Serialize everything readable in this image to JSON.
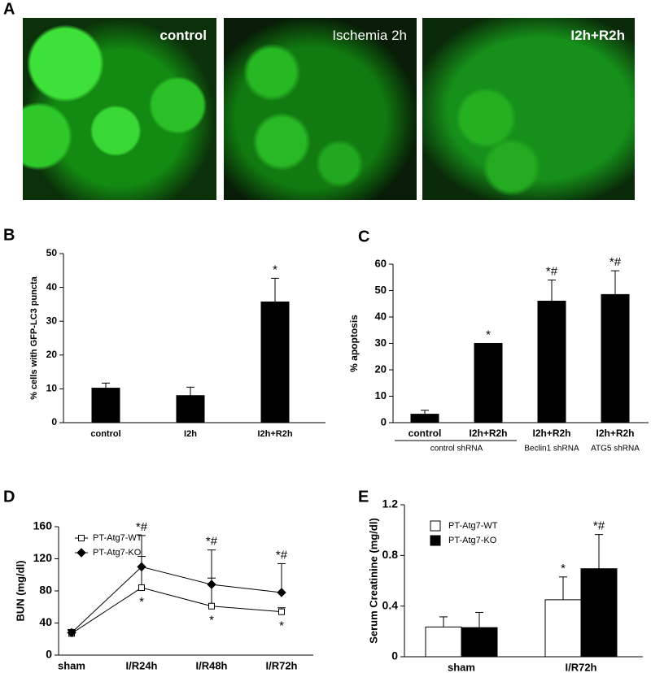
{
  "images": {
    "label": "A",
    "captions": [
      "control",
      "Ischemia 2h",
      "I2h+R2h"
    ]
  },
  "chart_data": [
    {
      "type": "bar",
      "label": "B",
      "y_label": "% cells with GFP-LC3 puncta",
      "categories": [
        "control",
        "I2h",
        "I2h+R2h"
      ],
      "series": [
        {
          "color": "#000000",
          "values": [
            10.2,
            8,
            35.7
          ],
          "errors": [
            1.5,
            2.5,
            7
          ],
          "value_notes": [
            null,
            null,
            "*"
          ]
        }
      ],
      "ylim": [
        0,
        50
      ],
      "yticks": [
        0,
        10,
        20,
        30,
        40,
        50
      ]
    },
    {
      "type": "bar",
      "label": "C",
      "y_label": "% apoptosis",
      "categories": [
        "control",
        "I2h+R2h",
        "I2h+R2h",
        "I2h+R2h"
      ],
      "group_labels": [
        "control shRNA",
        "Beclin1 shRNA",
        "ATG5 shRNA"
      ],
      "series": [
        {
          "color": "#000000",
          "values": [
            3.2,
            30,
            46,
            48.5
          ],
          "errors": [
            1.5,
            0,
            8,
            9
          ],
          "value_notes": [
            null,
            "*",
            "*#",
            "*#"
          ]
        }
      ],
      "ylim": [
        0,
        60
      ],
      "yticks": [
        0,
        10,
        20,
        30,
        40,
        50,
        60
      ]
    },
    {
      "type": "line",
      "label": "D",
      "y_label": "BUN (mg/dl)",
      "categories": [
        "sham",
        "I/R24h",
        "I/R48h",
        "I/R72h"
      ],
      "series": [
        {
          "name": "PT-Atg7-WT",
          "color": "#000000",
          "marker": "square",
          "filled": false,
          "values": [
            27,
            84,
            61,
            54
          ],
          "errors": [
            4,
            39,
            35,
            5
          ],
          "value_notes": [
            null,
            "*",
            "*",
            "*"
          ]
        },
        {
          "name": "PT-Atg7-KO",
          "color": "#000000",
          "marker": "diamond",
          "filled": true,
          "values": [
            28,
            110,
            88,
            78
          ],
          "errors": [
            4,
            39,
            43,
            36
          ],
          "value_notes": [
            null,
            "*#",
            "*#",
            "*#"
          ]
        }
      ],
      "ylim": [
        0,
        160
      ],
      "yticks": [
        0,
        40,
        80,
        120,
        160
      ],
      "legend": "upper left"
    },
    {
      "type": "bar",
      "label": "E",
      "y_label": "Serum Creatinine (mg/dl)",
      "categories": [
        "sham",
        "I/R72h"
      ],
      "series": [
        {
          "name": "PT-Atg7-WT",
          "color": "#ffffff",
          "values": [
            0.235,
            0.45
          ],
          "errors": [
            0.08,
            0.18
          ],
          "value_notes": [
            null,
            "*"
          ]
        },
        {
          "name": "PT-Atg7-KO",
          "color": "#000000",
          "values": [
            0.23,
            0.695
          ],
          "errors": [
            0.12,
            0.27
          ],
          "value_notes": [
            null,
            "*#"
          ]
        }
      ],
      "ylim": [
        0,
        1.2
      ],
      "yticks": [
        0,
        0.4,
        0.8,
        1.2
      ],
      "legend": "upper left"
    }
  ]
}
